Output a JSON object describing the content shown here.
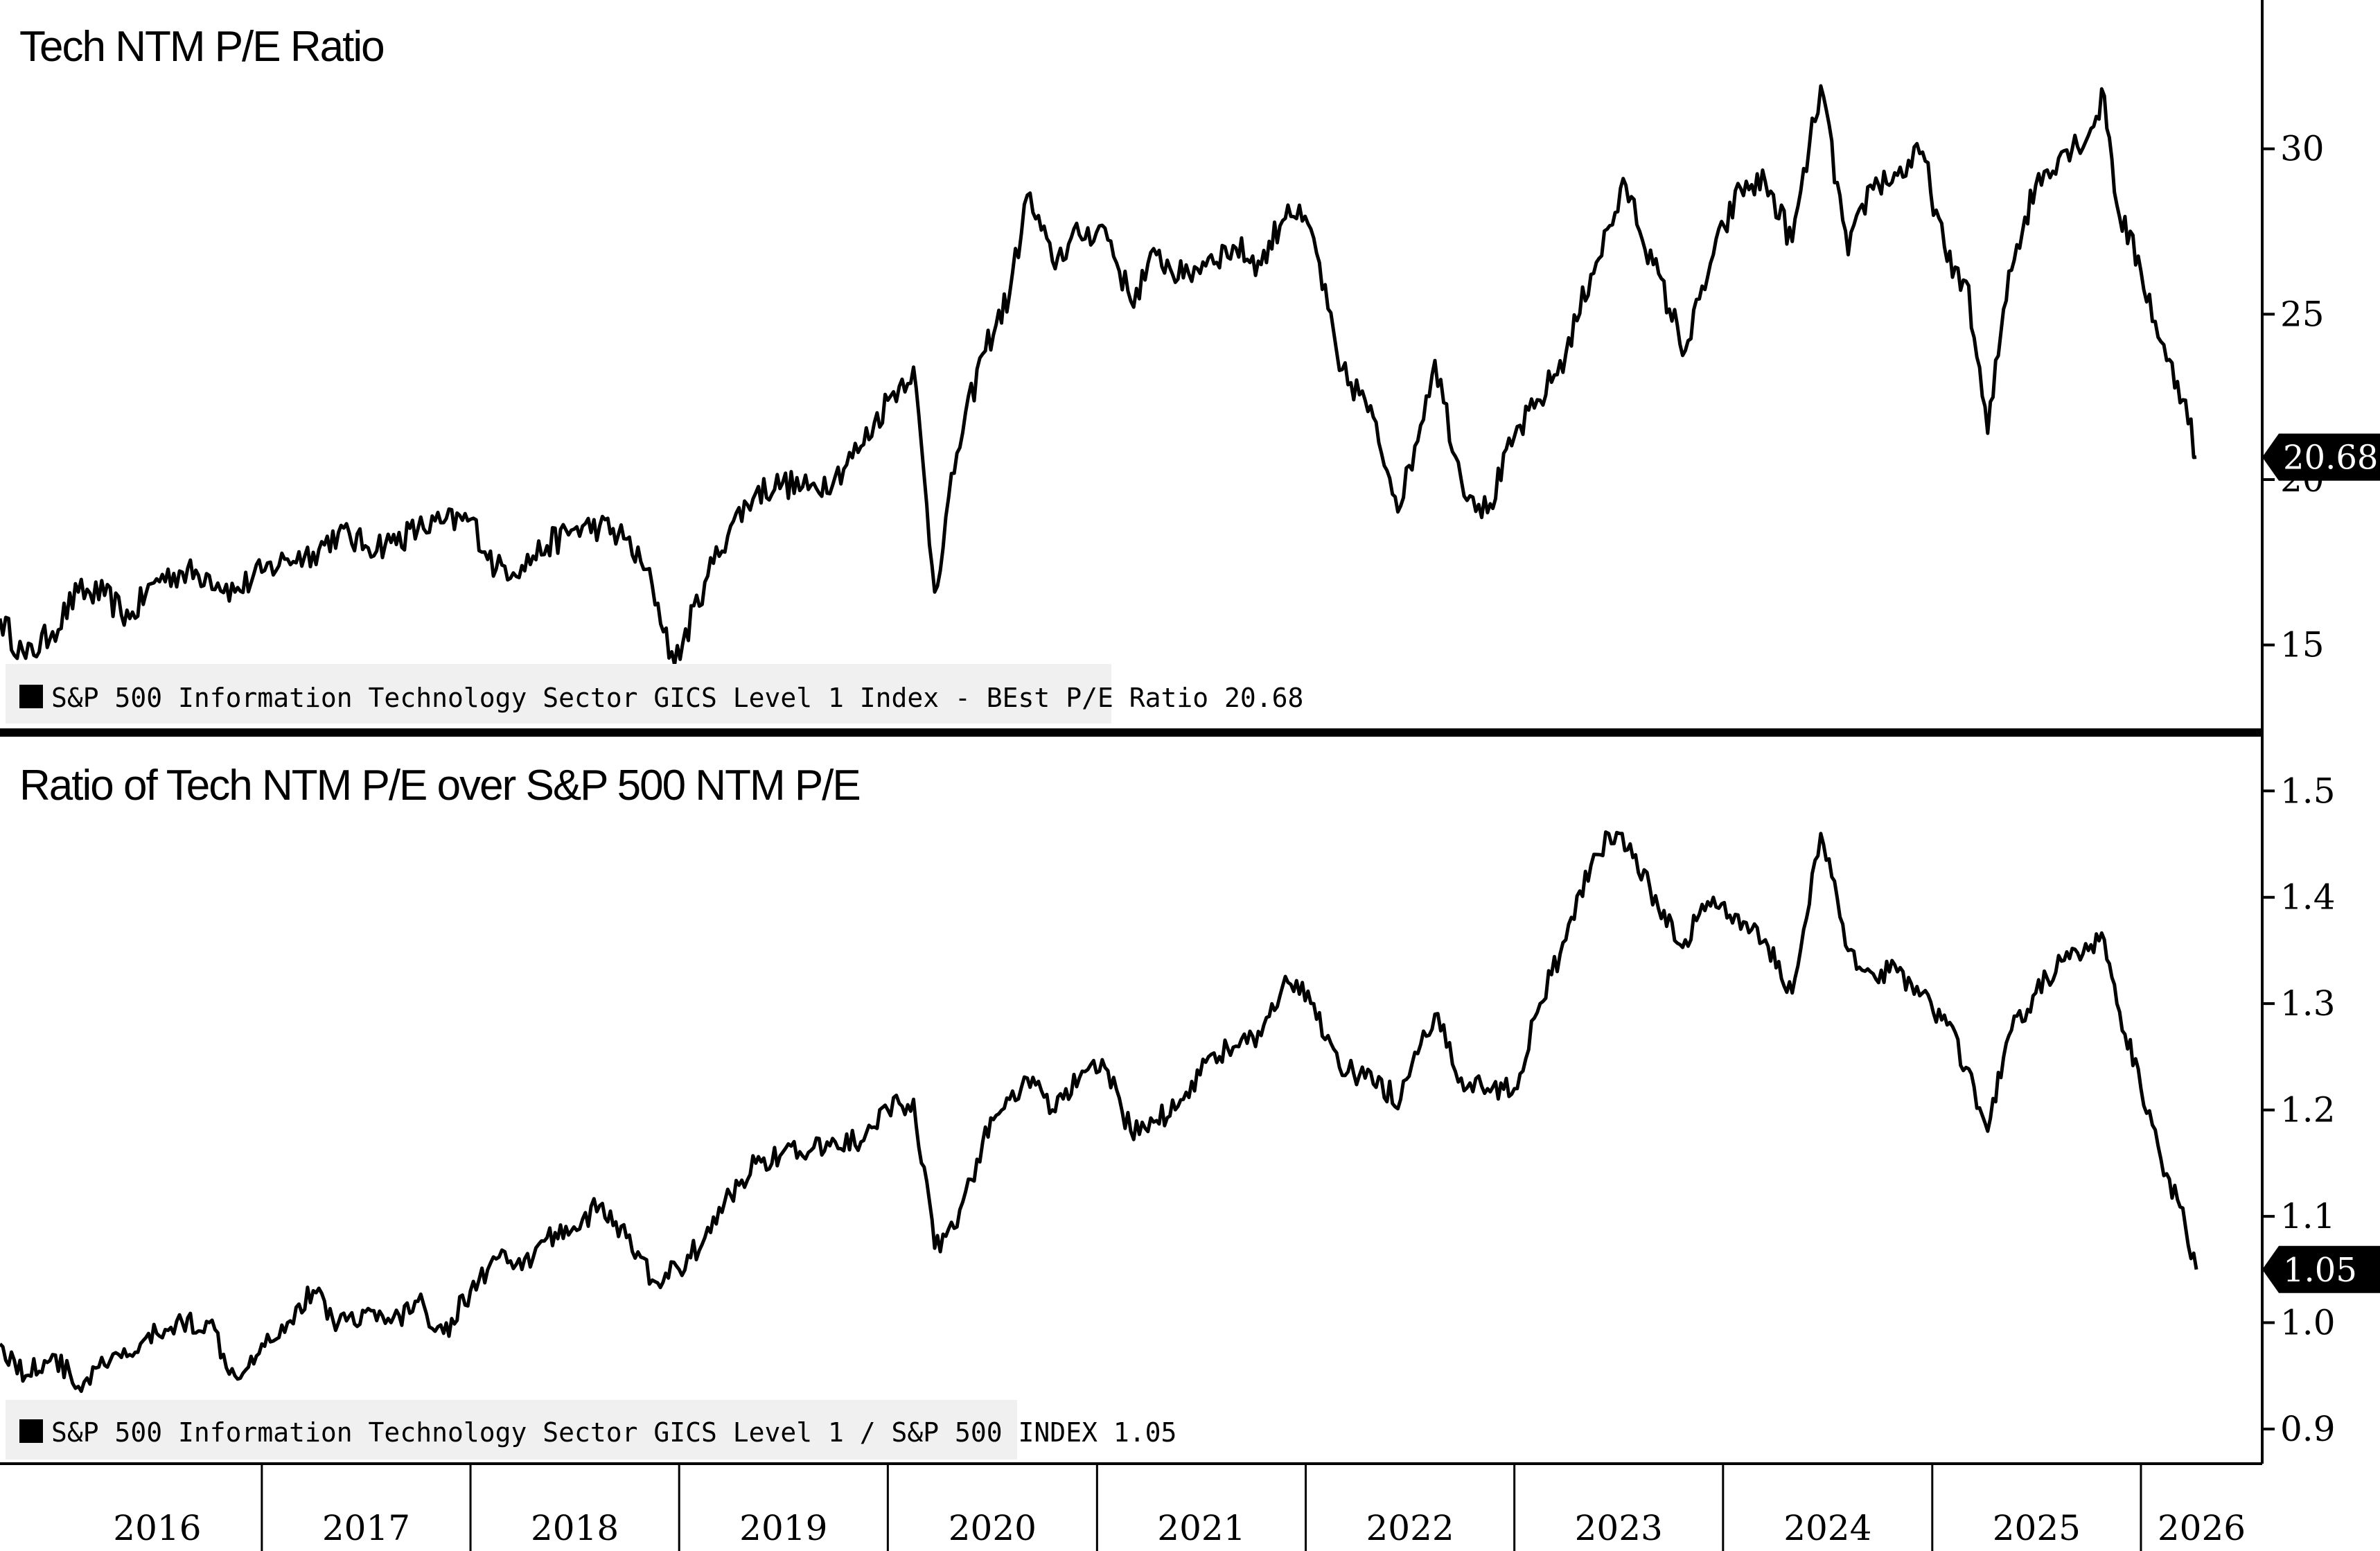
{
  "chart_data": [
    {
      "type": "line",
      "title": "Tech NTM P/E Ratio",
      "x_range": [
        "2015-10",
        "2026-04"
      ],
      "ylim": [
        12.5,
        33.2
      ],
      "yticks": [
        15,
        20,
        25,
        30
      ],
      "ytick_labels": [
        "15",
        "20",
        "25",
        "30"
      ],
      "last_value": 20.68,
      "last_value_label": "20.68",
      "series": [
        {
          "name": "S&P 500 Information Technology Sector GICS Level 1 Index - BEst P/E Ratio 20.68",
          "color": "#000000",
          "points": [
            [
              "2015-10-01",
              15.8
            ],
            [
              "2015-11-15",
              14.6
            ],
            [
              "2016-01-01",
              15.4
            ],
            [
              "2016-02-15",
              16.6
            ],
            [
              "2016-04-01",
              16.5
            ],
            [
              "2016-05-15",
              15.8
            ],
            [
              "2016-07-01",
              17.0
            ],
            [
              "2016-08-15",
              17.2
            ],
            [
              "2016-10-01",
              17.1
            ],
            [
              "2016-11-15",
              16.6
            ],
            [
              "2017-01-01",
              17.2
            ],
            [
              "2017-02-15",
              17.6
            ],
            [
              "2017-04-01",
              17.8
            ],
            [
              "2017-05-15",
              18.4
            ],
            [
              "2017-07-01",
              18.0
            ],
            [
              "2017-08-15",
              18.1
            ],
            [
              "2017-10-01",
              18.5
            ],
            [
              "2017-11-15",
              18.7
            ],
            [
              "2018-01-01",
              18.8
            ],
            [
              "2018-02-15",
              17.3
            ],
            [
              "2018-04-01",
              17.4
            ],
            [
              "2018-05-15",
              18.0
            ],
            [
              "2018-07-01",
              18.5
            ],
            [
              "2018-08-15",
              18.6
            ],
            [
              "2018-10-01",
              18.2
            ],
            [
              "2018-11-15",
              16.8
            ],
            [
              "2018-12-24",
              14.4
            ],
            [
              "2019-02-15",
              16.9
            ],
            [
              "2019-04-01",
              18.6
            ],
            [
              "2019-05-15",
              19.6
            ],
            [
              "2019-07-01",
              19.9
            ],
            [
              "2019-08-15",
              19.7
            ],
            [
              "2019-10-01",
              20.1
            ],
            [
              "2019-11-15",
              21.0
            ],
            [
              "2020-01-01",
              22.4
            ],
            [
              "2020-02-15",
              23.4
            ],
            [
              "2020-03-23",
              16.6
            ],
            [
              "2020-05-01",
              20.8
            ],
            [
              "2020-06-15",
              23.8
            ],
            [
              "2020-08-01",
              25.6
            ],
            [
              "2020-09-01",
              28.6
            ],
            [
              "2020-10-15",
              26.6
            ],
            [
              "2020-12-01",
              27.4
            ],
            [
              "2021-01-15",
              27.6
            ],
            [
              "2021-03-01",
              25.4
            ],
            [
              "2021-04-15",
              26.8
            ],
            [
              "2021-06-01",
              26.1
            ],
            [
              "2021-07-15",
              26.7
            ],
            [
              "2021-09-01",
              27.0
            ],
            [
              "2021-10-15",
              26.5
            ],
            [
              "2021-12-01",
              28.3
            ],
            [
              "2022-01-15",
              27.3
            ],
            [
              "2022-03-01",
              23.3
            ],
            [
              "2022-04-15",
              22.4
            ],
            [
              "2022-06-16",
              19.2
            ],
            [
              "2022-08-15",
              23.6
            ],
            [
              "2022-09-30",
              20.0
            ],
            [
              "2022-11-15",
              19.0
            ],
            [
              "2023-01-01",
              21.3
            ],
            [
              "2023-02-15",
              22.4
            ],
            [
              "2023-04-01",
              23.8
            ],
            [
              "2023-05-15",
              26.2
            ],
            [
              "2023-07-15",
              28.9
            ],
            [
              "2023-09-01",
              26.5
            ],
            [
              "2023-10-27",
              23.9
            ],
            [
              "2023-12-15",
              26.8
            ],
            [
              "2024-02-01",
              28.8
            ],
            [
              "2024-03-15",
              29.0
            ],
            [
              "2024-05-01",
              27.2
            ],
            [
              "2024-06-20",
              31.9
            ],
            [
              "2024-08-07",
              26.8
            ],
            [
              "2024-09-15",
              28.9
            ],
            [
              "2024-11-01",
              29.2
            ],
            [
              "2024-12-15",
              29.9
            ],
            [
              "2025-01-27",
              26.6
            ],
            [
              "2025-03-01",
              26.0
            ],
            [
              "2025-04-08",
              21.4
            ],
            [
              "2025-05-15",
              26.3
            ],
            [
              "2025-07-01",
              28.9
            ],
            [
              "2025-08-15",
              29.9
            ],
            [
              "2025-10-01",
              30.4
            ],
            [
              "2025-10-29",
              31.6
            ],
            [
              "2025-11-20",
              28.3
            ],
            [
              "2026-01-01",
              26.3
            ],
            [
              "2026-02-15",
              23.6
            ],
            [
              "2026-03-20",
              22.4
            ],
            [
              "2026-04-08",
              20.68
            ]
          ]
        }
      ]
    },
    {
      "type": "line",
      "title": "Ratio of Tech NTM P/E over S&P 500 NTM P/E",
      "x_range": [
        "2015-10",
        "2026-04"
      ],
      "ylim": [
        0.87,
        1.523
      ],
      "yticks": [
        0.9,
        1.0,
        1.1,
        1.2,
        1.3,
        1.4,
        1.5
      ],
      "ytick_labels": [
        "0.9",
        "1.0",
        "1.1",
        "1.2",
        "1.3",
        "1.4",
        "1.5"
      ],
      "last_value": 1.05,
      "last_value_label": "1.05",
      "series": [
        {
          "name": "S&P 500 Information Technology Sector GICS Level 1 / S&P 500 INDEX 1.05",
          "color": "#000000",
          "points": [
            [
              "2015-10-01",
              0.98
            ],
            [
              "2015-11-15",
              0.95
            ],
            [
              "2016-01-01",
              0.97
            ],
            [
              "2016-02-15",
              0.94
            ],
            [
              "2016-04-01",
              0.96
            ],
            [
              "2016-05-15",
              0.97
            ],
            [
              "2016-07-01",
              0.99
            ],
            [
              "2016-08-15",
              1.0
            ],
            [
              "2016-10-01",
              1.0
            ],
            [
              "2016-11-15",
              0.95
            ],
            [
              "2017-01-01",
              0.98
            ],
            [
              "2017-02-15",
              1.0
            ],
            [
              "2017-04-01",
              1.03
            ],
            [
              "2017-05-15",
              1.0
            ],
            [
              "2017-07-01",
              1.01
            ],
            [
              "2017-08-15",
              1.0
            ],
            [
              "2017-10-01",
              1.02
            ],
            [
              "2017-11-15",
              0.99
            ],
            [
              "2018-01-01",
              1.03
            ],
            [
              "2018-02-15",
              1.06
            ],
            [
              "2018-04-01",
              1.05
            ],
            [
              "2018-05-15",
              1.08
            ],
            [
              "2018-07-01",
              1.09
            ],
            [
              "2018-08-15",
              1.11
            ],
            [
              "2018-10-01",
              1.08
            ],
            [
              "2018-11-15",
              1.04
            ],
            [
              "2019-01-01",
              1.05
            ],
            [
              "2019-02-15",
              1.08
            ],
            [
              "2019-04-01",
              1.12
            ],
            [
              "2019-05-15",
              1.15
            ],
            [
              "2019-07-01",
              1.16
            ],
            [
              "2019-08-15",
              1.16
            ],
            [
              "2019-10-01",
              1.17
            ],
            [
              "2019-11-15",
              1.17
            ],
            [
              "2020-01-01",
              1.2
            ],
            [
              "2020-02-15",
              1.21
            ],
            [
              "2020-03-23",
              1.07
            ],
            [
              "2020-05-01",
              1.09
            ],
            [
              "2020-06-15",
              1.17
            ],
            [
              "2020-08-01",
              1.21
            ],
            [
              "2020-09-01",
              1.23
            ],
            [
              "2020-10-15",
              1.2
            ],
            [
              "2020-12-01",
              1.23
            ],
            [
              "2021-01-15",
              1.24
            ],
            [
              "2021-03-01",
              1.18
            ],
            [
              "2021-04-15",
              1.19
            ],
            [
              "2021-06-01",
              1.21
            ],
            [
              "2021-07-15",
              1.25
            ],
            [
              "2021-09-01",
              1.26
            ],
            [
              "2021-10-15",
              1.27
            ],
            [
              "2021-12-01",
              1.32
            ],
            [
              "2022-01-15",
              1.3
            ],
            [
              "2022-03-01",
              1.24
            ],
            [
              "2022-04-15",
              1.23
            ],
            [
              "2022-06-16",
              1.21
            ],
            [
              "2022-08-15",
              1.29
            ],
            [
              "2022-09-30",
              1.23
            ],
            [
              "2022-11-15",
              1.22
            ],
            [
              "2023-01-01",
              1.22
            ],
            [
              "2023-02-15",
              1.3
            ],
            [
              "2023-04-01",
              1.36
            ],
            [
              "2023-05-15",
              1.43
            ],
            [
              "2023-06-15",
              1.46
            ],
            [
              "2023-08-01",
              1.44
            ],
            [
              "2023-09-15",
              1.38
            ],
            [
              "2023-10-27",
              1.36
            ],
            [
              "2023-12-15",
              1.4
            ],
            [
              "2024-02-01",
              1.37
            ],
            [
              "2024-03-15",
              1.36
            ],
            [
              "2024-05-01",
              1.31
            ],
            [
              "2024-06-20",
              1.46
            ],
            [
              "2024-08-07",
              1.35
            ],
            [
              "2024-09-15",
              1.33
            ],
            [
              "2024-11-01",
              1.33
            ],
            [
              "2024-12-15",
              1.31
            ],
            [
              "2025-01-27",
              1.28
            ],
            [
              "2025-03-01",
              1.24
            ],
            [
              "2025-04-08",
              1.18
            ],
            [
              "2025-05-15",
              1.27
            ],
            [
              "2025-07-01",
              1.31
            ],
            [
              "2025-08-15",
              1.34
            ],
            [
              "2025-10-01",
              1.35
            ],
            [
              "2025-10-29",
              1.36
            ],
            [
              "2025-11-20",
              1.3
            ],
            [
              "2026-01-01",
              1.22
            ],
            [
              "2026-02-15",
              1.14
            ],
            [
              "2026-03-20",
              1.09
            ],
            [
              "2026-04-08",
              1.05
            ]
          ]
        }
      ]
    }
  ],
  "x_axis": {
    "years": [
      "2016",
      "2017",
      "2018",
      "2019",
      "2020",
      "2021",
      "2022",
      "2023",
      "2024",
      "2025",
      "2026"
    ]
  }
}
